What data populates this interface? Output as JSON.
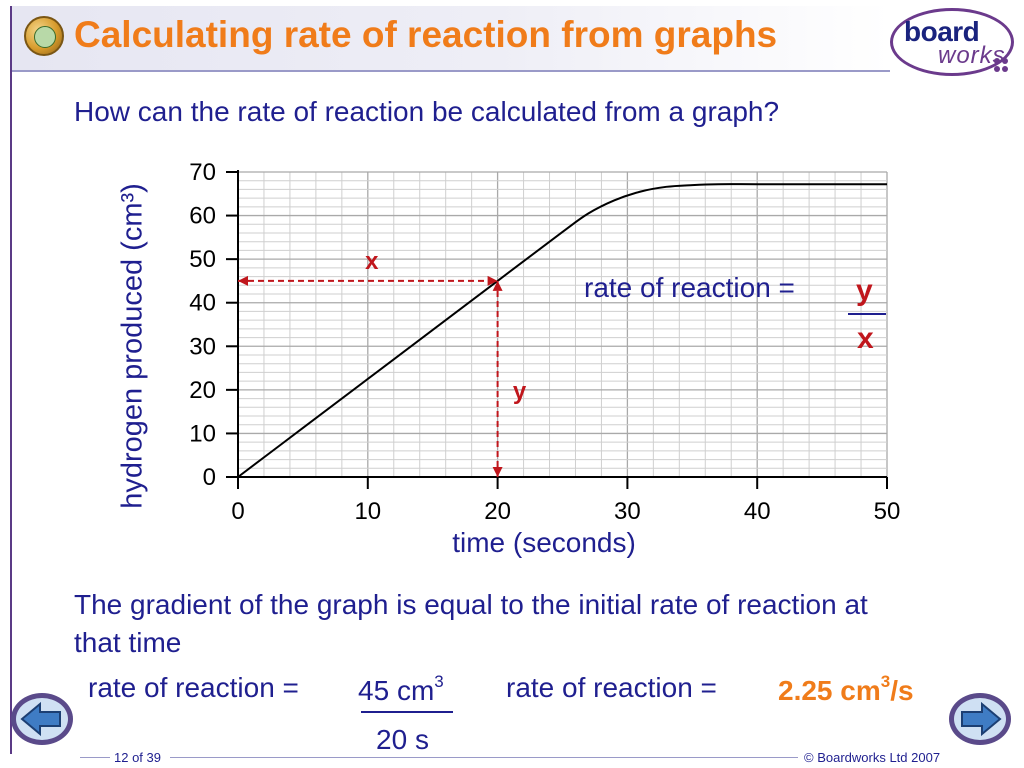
{
  "header": {
    "title": "Calculating rate of reaction from graphs",
    "icon": "chemistry-icon",
    "logo": {
      "board": "board",
      "works": "works"
    }
  },
  "question": "How can the rate of reaction be calculated from a graph?",
  "graph": {
    "x_marker": "x",
    "y_marker": "y",
    "formula_label": "rate of reaction =",
    "frac_num": "y",
    "frac_den": "x"
  },
  "chart_data": {
    "type": "line",
    "xlabel": "time (seconds)",
    "ylabel": "hydrogen produced (cm³)",
    "xlim": [
      0,
      50
    ],
    "ylim": [
      0,
      70
    ],
    "x_ticks": [
      0,
      10,
      20,
      30,
      40,
      50
    ],
    "y_ticks": [
      0,
      10,
      20,
      30,
      40,
      50,
      60,
      70
    ],
    "grid": true,
    "series": [
      {
        "x": [
          0,
          5,
          10,
          15,
          20,
          25,
          27,
          29,
          31,
          33,
          35,
          37,
          40,
          45,
          50
        ],
        "y": [
          0,
          11.25,
          22.5,
          33.75,
          45,
          56.25,
          60.5,
          63.5,
          65.5,
          66.6,
          67,
          67.2,
          67.2,
          67.2,
          67.2
        ]
      }
    ],
    "annotations": [
      {
        "label": "x",
        "from": [
          0,
          45
        ],
        "to": [
          20,
          45
        ]
      },
      {
        "label": "y",
        "from": [
          20,
          0
        ],
        "to": [
          20,
          45
        ]
      }
    ]
  },
  "explanation": "The gradient of the graph is equal to the initial rate of reaction at that time",
  "calc": {
    "label1": "rate of reaction =",
    "num_value": "45",
    "num_unit": "cm",
    "num_exp": "3",
    "den_value": "20",
    "den_unit": "s",
    "label2": "rate of reaction =",
    "result_value": "2.25",
    "result_unit": "cm",
    "result_exp": "3",
    "result_suffix": "/s"
  },
  "footer": {
    "page": "12 of 39",
    "copyright": "© Boardworks Ltd 2007"
  },
  "colors": {
    "title": "#f07c1a",
    "text": "#1f1f8f",
    "marker": "#c0161c",
    "result": "#f07c1a"
  }
}
